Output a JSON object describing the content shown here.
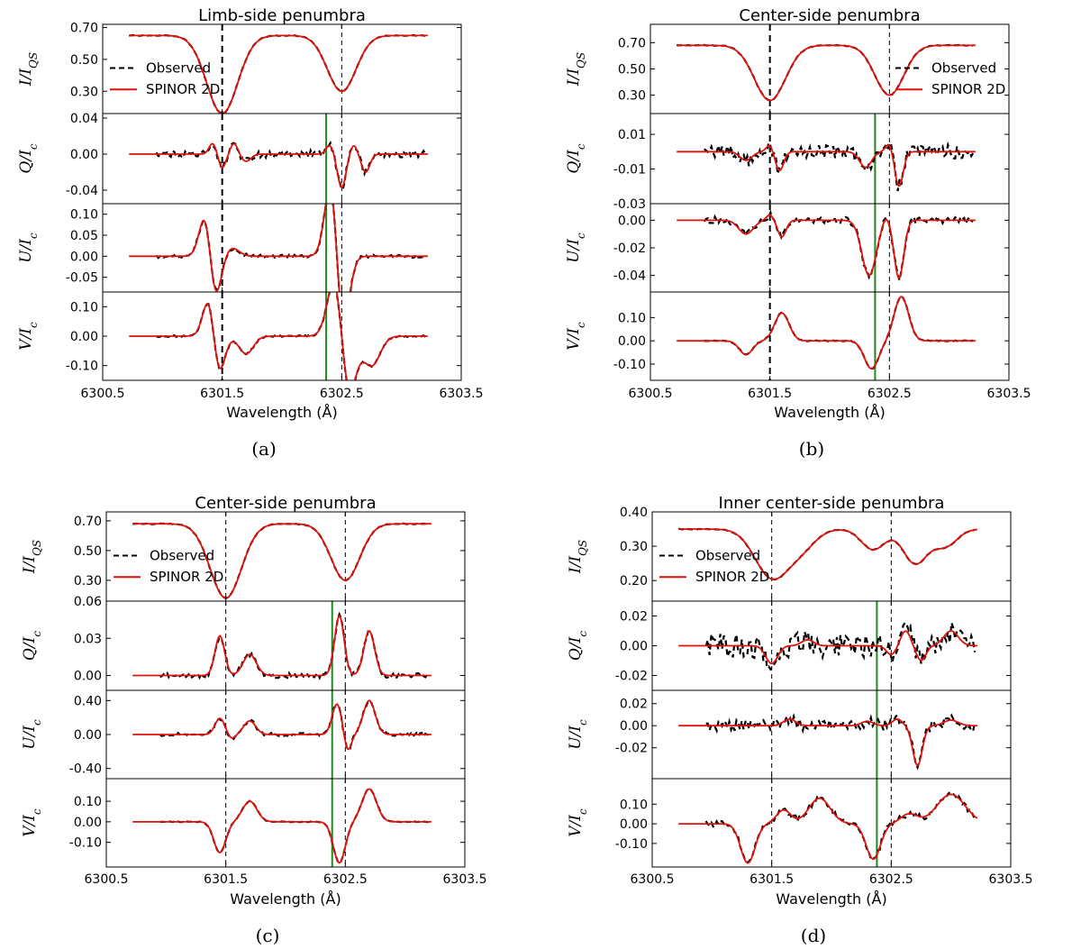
{
  "legend": {
    "observed": "Observed",
    "model": "SPINOR 2D"
  },
  "colors": {
    "observed": "#000000",
    "model": "#e0120c",
    "marker": "#1f8a1f",
    "frame": "#000000"
  },
  "xlabel": "Wavelength (Å)",
  "xticks": [
    "6300.5",
    "6301.5",
    "6302.5",
    "6303.5"
  ],
  "xlim": [
    6300.5,
    6303.5
  ],
  "data_x_range": [
    6300.72,
    6303.22
  ],
  "observed_x_range": [
    6300.95,
    6303.2
  ],
  "ref_lines": [
    6301.5,
    6302.5
  ],
  "chart_data": [
    {
      "type": "line",
      "title": "Limb-side penumbra",
      "caption": "(a)",
      "marker_x": 6302.37,
      "dashed_ref_x": 6301.5,
      "panels": [
        {
          "ylabel": "I/I_QS",
          "ylabel_main": "I/I",
          "ylabel_sub": "QS",
          "ylim": [
            0.16,
            0.72
          ],
          "ytick_values": [
            0.3,
            0.5,
            0.7
          ],
          "ytick_labels": [
            "0.30",
            "0.50",
            "0.70"
          ],
          "baseline": 0.65,
          "features": [
            {
              "x": 6301.5,
              "a": -0.49,
              "w": 0.13,
              "kind": "g"
            },
            {
              "x": 6302.5,
              "a": -0.35,
              "w": 0.12,
              "kind": "g"
            }
          ]
        },
        {
          "ylabel": "Q/I_c",
          "ylabel_main": "Q/I",
          "ylabel_sub": "c",
          "ylim": [
            -0.055,
            0.045
          ],
          "ytick_values": [
            -0.04,
            0.0,
            0.04
          ],
          "ytick_labels": [
            "-0.04",
            "0.00",
            "0.04"
          ],
          "baseline": 0.0,
          "noise": 0.004,
          "features": [
            {
              "x": 6301.42,
              "a": 0.012,
              "w": 0.03,
              "kind": "g"
            },
            {
              "x": 6301.5,
              "a": -0.015,
              "w": 0.03,
              "kind": "g"
            },
            {
              "x": 6301.6,
              "a": 0.012,
              "w": 0.03,
              "kind": "g"
            },
            {
              "x": 6301.7,
              "a": -0.008,
              "w": 0.04,
              "kind": "g"
            },
            {
              "x": 6302.4,
              "a": 0.01,
              "w": 0.03,
              "kind": "g"
            },
            {
              "x": 6302.5,
              "a": -0.037,
              "w": 0.035,
              "kind": "g"
            },
            {
              "x": 6302.6,
              "a": 0.01,
              "w": 0.03,
              "kind": "g"
            },
            {
              "x": 6302.7,
              "a": -0.02,
              "w": 0.035,
              "kind": "g"
            }
          ]
        },
        {
          "ylabel": "U/I_c",
          "ylabel_main": "U/I",
          "ylabel_sub": "c",
          "ylim": [
            -0.085,
            0.125
          ],
          "ytick_values": [
            -0.05,
            0.0,
            0.05,
            0.1
          ],
          "ytick_labels": [
            "-0.05",
            "0.00",
            "0.05",
            "0.10"
          ],
          "baseline": 0.0,
          "noise": 0.004,
          "features": [
            {
              "x": 6301.4,
              "a": 0.085,
              "w": 0.055,
              "kind": "d"
            },
            {
              "x": 6301.58,
              "a": 0.02,
              "w": 0.06,
              "kind": "g"
            },
            {
              "x": 6302.46,
              "a": 0.16,
              "w": 0.06,
              "kind": "d"
            }
          ]
        },
        {
          "ylabel": "V/I_c",
          "ylabel_main": "V/I",
          "ylabel_sub": "c",
          "ylim": [
            -0.15,
            0.15
          ],
          "ytick_values": [
            -0.1,
            0.0,
            0.1
          ],
          "ytick_labels": [
            "-0.10",
            "0.00",
            "0.10"
          ],
          "baseline": 0.0,
          "noise": 0.003,
          "features": [
            {
              "x": 6301.43,
              "a": 0.11,
              "w": 0.055,
              "kind": "d"
            },
            {
              "x": 6301.7,
              "a": -0.06,
              "w": 0.06,
              "kind": "g"
            },
            {
              "x": 6302.5,
              "a": 0.18,
              "w": 0.07,
              "kind": "d"
            },
            {
              "x": 6302.75,
              "a": -0.1,
              "w": 0.07,
              "kind": "g"
            }
          ]
        }
      ]
    },
    {
      "type": "line",
      "title": "Center-side penumbra",
      "caption": "(b)",
      "marker_x": 6302.38,
      "dashed_ref_x": 6301.5,
      "panels": [
        {
          "ylabel": "I/I_QS",
          "ylabel_main": "I/I",
          "ylabel_sub": "QS",
          "ylim": [
            0.16,
            0.84
          ],
          "ytick_values": [
            0.3,
            0.5,
            0.7
          ],
          "ytick_labels": [
            "0.30",
            "0.50",
            "0.70"
          ],
          "baseline": 0.68,
          "features": [
            {
              "x": 6301.5,
              "a": -0.42,
              "w": 0.13,
              "kind": "g"
            },
            {
              "x": 6302.5,
              "a": -0.38,
              "w": 0.12,
              "kind": "g"
            }
          ]
        },
        {
          "ylabel": "Q/I_c",
          "ylabel_main": "Q/I",
          "ylabel_sub": "c",
          "ylim": [
            -0.03,
            0.022
          ],
          "ytick_values": [
            -0.03,
            -0.01,
            0.01
          ],
          "ytick_labels": [
            "-0.03",
            "-0.01",
            "0.01"
          ],
          "baseline": 0.0,
          "noise": 0.004,
          "features": [
            {
              "x": 6301.3,
              "a": -0.005,
              "w": 0.05,
              "kind": "g"
            },
            {
              "x": 6301.5,
              "a": 0.004,
              "w": 0.03,
              "kind": "g"
            },
            {
              "x": 6301.58,
              "a": -0.011,
              "w": 0.035,
              "kind": "g"
            },
            {
              "x": 6302.3,
              "a": -0.009,
              "w": 0.05,
              "kind": "g"
            },
            {
              "x": 6302.5,
              "a": 0.005,
              "w": 0.03,
              "kind": "g"
            },
            {
              "x": 6302.58,
              "a": -0.02,
              "w": 0.035,
              "kind": "g"
            }
          ]
        },
        {
          "ylabel": "U/I_c",
          "ylabel_main": "U/I",
          "ylabel_sub": "c",
          "ylim": [
            -0.052,
            0.012
          ],
          "ytick_values": [
            -0.04,
            -0.02,
            0.0
          ],
          "ytick_labels": [
            "-0.04",
            "-0.02",
            "0.00"
          ],
          "baseline": 0.0,
          "noise": 0.0025,
          "features": [
            {
              "x": 6301.3,
              "a": -0.01,
              "w": 0.06,
              "kind": "g"
            },
            {
              "x": 6301.5,
              "a": 0.004,
              "w": 0.03,
              "kind": "g"
            },
            {
              "x": 6301.6,
              "a": -0.012,
              "w": 0.035,
              "kind": "g"
            },
            {
              "x": 6302.33,
              "a": -0.04,
              "w": 0.06,
              "kind": "g"
            },
            {
              "x": 6302.47,
              "a": 0.004,
              "w": 0.03,
              "kind": "g"
            },
            {
              "x": 6302.58,
              "a": -0.042,
              "w": 0.04,
              "kind": "g"
            }
          ]
        },
        {
          "ylabel": "V/I_c",
          "ylabel_main": "V/I",
          "ylabel_sub": "c",
          "ylim": [
            -0.17,
            0.21
          ],
          "ytick_values": [
            -0.1,
            0.0,
            0.1
          ],
          "ytick_labels": [
            "-0.10",
            "0.00",
            "0.10"
          ],
          "baseline": 0.0,
          "noise": 0.002,
          "features": [
            {
              "x": 6301.3,
              "a": -0.06,
              "w": 0.055,
              "kind": "g"
            },
            {
              "x": 6301.6,
              "a": 0.12,
              "w": 0.06,
              "kind": "g"
            },
            {
              "x": 6302.35,
              "a": -0.12,
              "w": 0.06,
              "kind": "g"
            },
            {
              "x": 6302.6,
              "a": 0.19,
              "w": 0.06,
              "kind": "g"
            }
          ]
        }
      ]
    },
    {
      "type": "line",
      "title": "Center-side penumbra",
      "caption": "(c)",
      "marker_x": 6302.39,
      "dashed_ref_x": 6301.5,
      "panels": [
        {
          "ylabel": "I/I_QS",
          "ylabel_main": "I/I",
          "ylabel_sub": "QS",
          "ylim": [
            0.16,
            0.76
          ],
          "ytick_values": [
            0.3,
            0.5,
            0.7
          ],
          "ytick_labels": [
            "0.30",
            "0.50",
            "0.70"
          ],
          "baseline": 0.68,
          "features": [
            {
              "x": 6301.5,
              "a": -0.5,
              "w": 0.13,
              "kind": "g"
            },
            {
              "x": 6302.5,
              "a": -0.38,
              "w": 0.12,
              "kind": "g"
            }
          ]
        },
        {
          "ylabel": "Q/I_c",
          "ylabel_main": "Q/I",
          "ylabel_sub": "c",
          "ylim": [
            -0.012,
            0.06
          ],
          "ytick_values": [
            0.0,
            0.03,
            0.06
          ],
          "ytick_labels": [
            "0.00",
            "0.03",
            "0.06"
          ],
          "baseline": 0.0,
          "noise": 0.002,
          "features": [
            {
              "x": 6301.45,
              "a": 0.032,
              "w": 0.04,
              "kind": "g"
            },
            {
              "x": 6301.7,
              "a": 0.017,
              "w": 0.055,
              "kind": "g"
            },
            {
              "x": 6302.45,
              "a": 0.048,
              "w": 0.04,
              "kind": "g"
            },
            {
              "x": 6302.7,
              "a": 0.036,
              "w": 0.045,
              "kind": "g"
            }
          ]
        },
        {
          "ylabel": "U/I_c",
          "ylabel_main": "U/I",
          "ylabel_sub": "c",
          "ylim": [
            -0.52,
            0.52
          ],
          "ytick_values": [
            -0.4,
            0.0,
            0.4
          ],
          "ytick_labels": [
            "-0.40",
            "0.00",
            "0.40"
          ],
          "baseline": 0.0,
          "noise": 0.02,
          "features": [
            {
              "x": 6301.45,
              "a": 0.19,
              "w": 0.04,
              "kind": "g"
            },
            {
              "x": 6301.55,
              "a": -0.05,
              "w": 0.03,
              "kind": "g"
            },
            {
              "x": 6301.7,
              "a": 0.16,
              "w": 0.05,
              "kind": "g"
            },
            {
              "x": 6302.43,
              "a": 0.36,
              "w": 0.04,
              "kind": "g"
            },
            {
              "x": 6302.52,
              "a": -0.2,
              "w": 0.03,
              "kind": "g"
            },
            {
              "x": 6302.7,
              "a": 0.4,
              "w": 0.05,
              "kind": "g"
            }
          ]
        },
        {
          "ylabel": "V/I_c",
          "ylabel_main": "V/I",
          "ylabel_sub": "c",
          "ylim": [
            -0.22,
            0.21
          ],
          "ytick_values": [
            -0.1,
            0.0,
            0.1
          ],
          "ytick_labels": [
            "-0.10",
            "0.00",
            "0.10"
          ],
          "baseline": 0.0,
          "noise": 0.002,
          "features": [
            {
              "x": 6301.45,
              "a": -0.15,
              "w": 0.05,
              "kind": "g"
            },
            {
              "x": 6301.7,
              "a": 0.1,
              "w": 0.06,
              "kind": "g"
            },
            {
              "x": 6302.45,
              "a": -0.2,
              "w": 0.05,
              "kind": "g"
            },
            {
              "x": 6302.7,
              "a": 0.16,
              "w": 0.06,
              "kind": "g"
            }
          ]
        }
      ]
    },
    {
      "type": "line",
      "title": "Inner center-side penumbra",
      "caption": "(d)",
      "marker_x": 6302.38,
      "dashed_ref_x": 6301.5,
      "panels": [
        {
          "ylabel": "I/I_QS",
          "ylabel_main": "I/I",
          "ylabel_sub": "QS",
          "ylim": [
            0.14,
            0.4
          ],
          "ytick_values": [
            0.2,
            0.3,
            0.4
          ],
          "ytick_labels": [
            "0.20",
            "0.30",
            "0.40"
          ],
          "baseline": 0.35,
          "features": [
            {
              "x": 6301.5,
              "a": -0.14,
              "w": 0.14,
              "kind": "g"
            },
            {
              "x": 6301.75,
              "a": -0.05,
              "w": 0.12,
              "kind": "g"
            },
            {
              "x": 6302.35,
              "a": -0.06,
              "w": 0.1,
              "kind": "g"
            },
            {
              "x": 6302.7,
              "a": -0.1,
              "w": 0.1,
              "kind": "g"
            },
            {
              "x": 6302.95,
              "a": -0.05,
              "w": 0.1,
              "kind": "g"
            }
          ]
        },
        {
          "ylabel": "Q/I_c",
          "ylabel_main": "Q/I",
          "ylabel_sub": "c",
          "ylim": [
            -0.03,
            0.03
          ],
          "ytick_values": [
            -0.02,
            0.0,
            0.02
          ],
          "ytick_labels": [
            "-0.02",
            "0.00",
            "0.02"
          ],
          "baseline": 0.0,
          "noise": 0.008,
          "features": [
            {
              "x": 6301.5,
              "a": -0.012,
              "w": 0.05,
              "kind": "g"
            },
            {
              "x": 6301.8,
              "a": 0.004,
              "w": 0.05,
              "kind": "g"
            },
            {
              "x": 6302.5,
              "a": -0.006,
              "w": 0.04,
              "kind": "g"
            },
            {
              "x": 6302.62,
              "a": 0.01,
              "w": 0.04,
              "kind": "g"
            },
            {
              "x": 6302.75,
              "a": -0.01,
              "w": 0.04,
              "kind": "g"
            },
            {
              "x": 6303.0,
              "a": 0.01,
              "w": 0.06,
              "kind": "g"
            }
          ]
        },
        {
          "ylabel": "U/I_c",
          "ylabel_main": "U/I",
          "ylabel_sub": "c",
          "ylim": [
            -0.048,
            0.032
          ],
          "ytick_values": [
            -0.02,
            0.0,
            0.02
          ],
          "ytick_labels": [
            "-0.02",
            "0.00",
            "0.02"
          ],
          "baseline": 0.0,
          "noise": 0.005,
          "features": [
            {
              "x": 6301.65,
              "a": 0.006,
              "w": 0.05,
              "kind": "g"
            },
            {
              "x": 6302.3,
              "a": 0.004,
              "w": 0.05,
              "kind": "g"
            },
            {
              "x": 6302.55,
              "a": 0.006,
              "w": 0.04,
              "kind": "g"
            },
            {
              "x": 6302.72,
              "a": -0.036,
              "w": 0.04,
              "kind": "g"
            },
            {
              "x": 6303.0,
              "a": 0.005,
              "w": 0.06,
              "kind": "g"
            }
          ]
        },
        {
          "ylabel": "V/I_c",
          "ylabel_main": "V/I",
          "ylabel_sub": "c",
          "ylim": [
            -0.22,
            0.23
          ],
          "ytick_values": [
            -0.1,
            0.0,
            0.1
          ],
          "ytick_labels": [
            "-0.10",
            "0.00",
            "0.10"
          ],
          "baseline": 0.0,
          "noise": 0.015,
          "features": [
            {
              "x": 6301.3,
              "a": -0.2,
              "w": 0.06,
              "kind": "g"
            },
            {
              "x": 6301.6,
              "a": 0.07,
              "w": 0.06,
              "kind": "g"
            },
            {
              "x": 6301.9,
              "a": 0.13,
              "w": 0.09,
              "kind": "g"
            },
            {
              "x": 6302.35,
              "a": -0.18,
              "w": 0.06,
              "kind": "g"
            },
            {
              "x": 6302.65,
              "a": 0.05,
              "w": 0.07,
              "kind": "g"
            },
            {
              "x": 6303.0,
              "a": 0.15,
              "w": 0.12,
              "kind": "g"
            }
          ]
        }
      ]
    }
  ]
}
